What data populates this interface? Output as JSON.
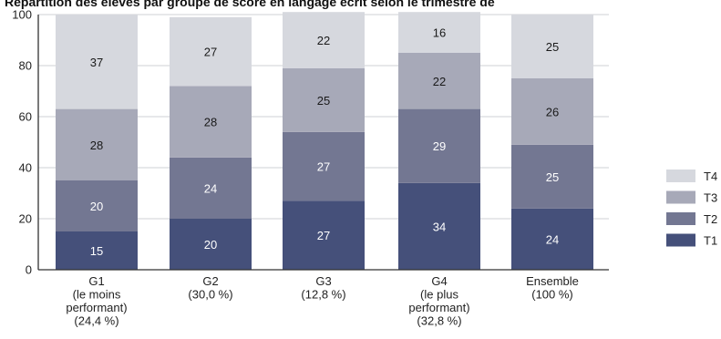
{
  "chart_data": {
    "type": "bar",
    "stacked": true,
    "title": "Répartition des élèves par groupe de score en langage écrit selon le trimestre de",
    "categories": [
      [
        "G1",
        "(le moins",
        "performant)",
        "(24,4 %)"
      ],
      [
        "G2",
        "(30,0 %)"
      ],
      [
        "G3",
        "(12,8 %)"
      ],
      [
        "G4",
        "(le plus",
        "performant)",
        "(32,8 %)"
      ],
      [
        "Ensemble",
        "(100 %)"
      ]
    ],
    "series": [
      {
        "name": "T1",
        "color": "#45507a",
        "label_color": "#ffffff",
        "values": [
          15,
          20,
          27,
          34,
          24
        ]
      },
      {
        "name": "T2",
        "color": "#737792",
        "label_color": "#ffffff",
        "values": [
          20,
          24,
          27,
          29,
          25
        ]
      },
      {
        "name": "T3",
        "color": "#a7a9b8",
        "label_color": "#1a1a1a",
        "values": [
          28,
          28,
          25,
          22,
          26
        ]
      },
      {
        "name": "T4",
        "color": "#d6d8de",
        "label_color": "#1a1a1a",
        "values": [
          37,
          27,
          22,
          16,
          25
        ]
      }
    ],
    "yticks": [
      0,
      20,
      40,
      60,
      80,
      100
    ],
    "ylim": [
      0,
      100
    ],
    "gridlines": true,
    "legend_position": "right"
  }
}
